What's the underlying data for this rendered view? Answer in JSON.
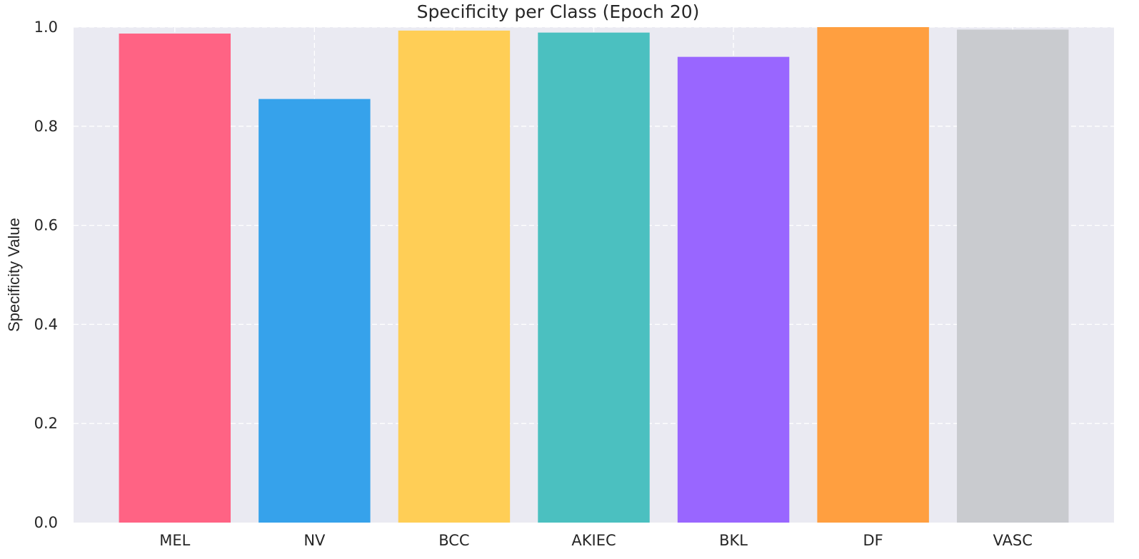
{
  "chart_data": {
    "type": "bar",
    "title": "Specificity per Class (Epoch 20)",
    "xlabel": "",
    "ylabel": "Specificity Value",
    "categories": [
      "MEL",
      "NV",
      "BCC",
      "AKIEC",
      "BKL",
      "DF",
      "VASC"
    ],
    "values": [
      0.987,
      0.855,
      0.993,
      0.989,
      0.94,
      1.0,
      0.995
    ],
    "colors": [
      "#FF6384",
      "#36A2EB",
      "#FFCE56",
      "#4BC0C0",
      "#9966FF",
      "#FF9F40",
      "#C9CBCF"
    ],
    "ylim": [
      0,
      1.0
    ],
    "yticks": [
      "0.0",
      "0.2",
      "0.4",
      "0.6",
      "0.8",
      "1.0"
    ],
    "grid": true,
    "background": "#EAEAF2"
  }
}
